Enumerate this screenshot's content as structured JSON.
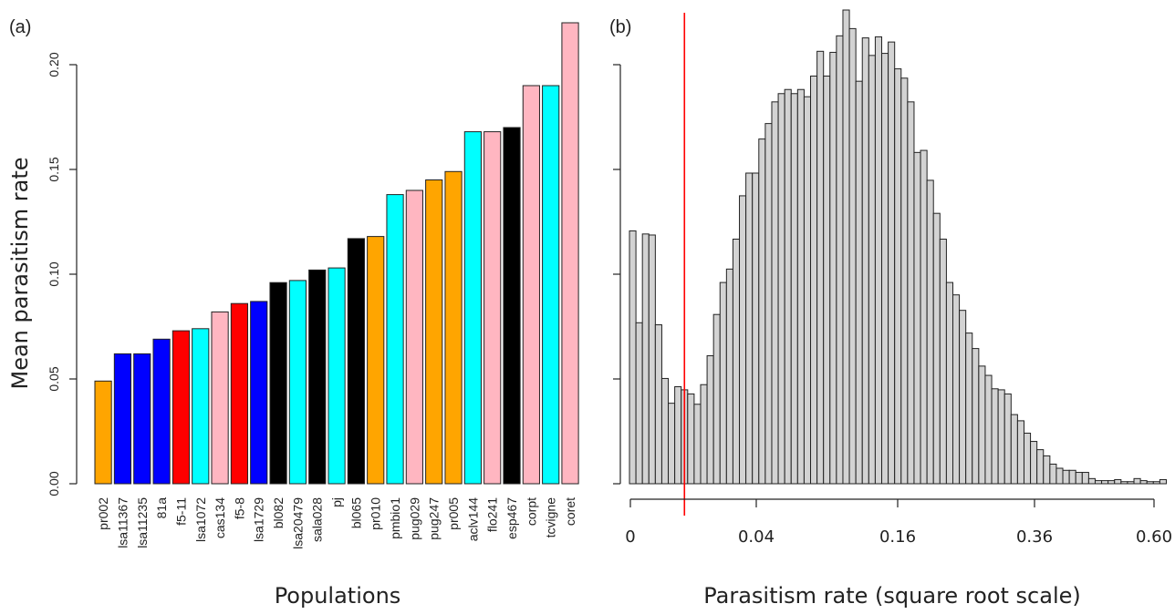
{
  "chart_data": [
    {
      "panel": "(a)",
      "type": "bar",
      "title": "",
      "xlabel": "Populations",
      "ylabel": "Mean parasitism rate",
      "ylim": [
        0,
        0.22
      ],
      "yticks": [
        "0.00",
        "0.05",
        "0.10",
        "0.15",
        "0.20"
      ],
      "categories": [
        "pr002",
        "lsa11367",
        "lsa11235",
        "81a",
        "f5-11",
        "lsa1072",
        "cas134",
        "f5-8",
        "lsa1729",
        "bl082",
        "lsa20479",
        "sala028",
        "pj",
        "bl065",
        "pr010",
        "pmbio1",
        "pug029",
        "pug247",
        "pr005",
        "aclv144",
        "flo241",
        "esp467",
        "corpt",
        "tcvigne",
        "coret"
      ],
      "values": [
        0.049,
        0.062,
        0.062,
        0.069,
        0.073,
        0.074,
        0.082,
        0.086,
        0.087,
        0.096,
        0.097,
        0.102,
        0.103,
        0.117,
        0.118,
        0.138,
        0.14,
        0.145,
        0.149,
        0.168,
        0.168,
        0.17,
        0.19,
        0.19,
        0.22
      ],
      "bar_colors": [
        "#FFA500",
        "#0000FF",
        "#0000FF",
        "#0000FF",
        "#FF0000",
        "#00FFFF",
        "#FFB6C1",
        "#FF0000",
        "#0000FF",
        "#000000",
        "#00FFFF",
        "#000000",
        "#00FFFF",
        "#000000",
        "#FFA500",
        "#00FFFF",
        "#FFB6C1",
        "#FFA500",
        "#FFA500",
        "#00FFFF",
        "#FFB6C1",
        "#000000",
        "#FFB6C1",
        "#00FFFF",
        "#FFB6C1"
      ]
    },
    {
      "panel": "(b)",
      "type": "bar",
      "title": "",
      "xlabel": "Parasitism rate (square root scale)",
      "ylabel": "",
      "x_scale": "sqrt",
      "xticks": [
        "0",
        "0.04",
        "0.16",
        "0.36",
        "0.60"
      ],
      "bin_counts": [
        245,
        156,
        242,
        241,
        154,
        102,
        78,
        94,
        91,
        87,
        77,
        96,
        124,
        164,
        195,
        208,
        237,
        279,
        301,
        301,
        334,
        349,
        370,
        378,
        382,
        378,
        382,
        375,
        395,
        419,
        395,
        418,
        434,
        459,
        441,
        390,
        432,
        415,
        433,
        417,
        428,
        402,
        393,
        370,
        321,
        323,
        294,
        262,
        237,
        195,
        183,
        168,
        146,
        131,
        114,
        105,
        92,
        91,
        87,
        67,
        61,
        49,
        41,
        33,
        27,
        19,
        15,
        13,
        13,
        11,
        11,
        5,
        3,
        3,
        3,
        4,
        2,
        2,
        5,
        3,
        2,
        2,
        4
      ],
      "bin_fill": "#D3D3D3",
      "threshold_line_color": "#FF0000",
      "threshold_bin_position": 8.5
    }
  ]
}
